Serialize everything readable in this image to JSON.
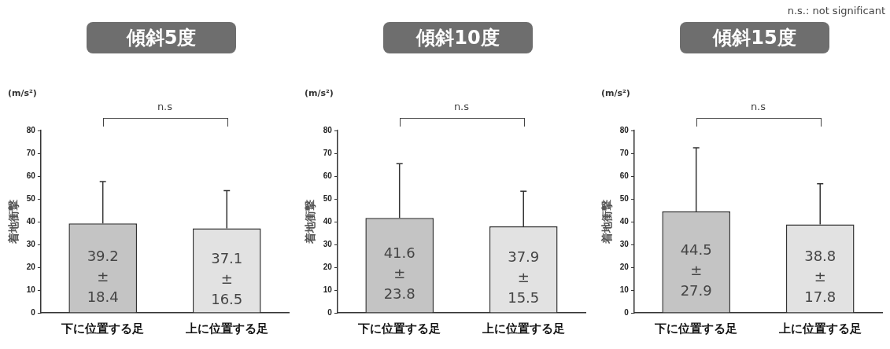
{
  "chart_data": [
    {
      "type": "bar",
      "title": "傾斜5度",
      "ylabel": "着地衝撃",
      "categories": [
        "下に位置する足",
        "上に位置する足"
      ],
      "values": [
        39.2,
        37.1
      ],
      "colors": [
        "#c4c4c4",
        "#e2e2e2"
      ],
      "errors": [
        [
          39.2,
          57.6
        ],
        [
          37.1,
          53.6
        ]
      ],
      "value_labels": [
        "39.2\n±\n18.4",
        "37.1\n±\n16.5"
      ],
      "ylim": [
        0,
        80
      ],
      "yticks": [
        0,
        10,
        20,
        30,
        40,
        50,
        60,
        70,
        80
      ],
      "grid": false,
      "legend": false,
      "annotations": [
        "(m/s²)",
        "n.s"
      ]
    },
    {
      "type": "bar",
      "title": "傾斜10度",
      "ylabel": "着地衝撃",
      "categories": [
        "下に位置する足",
        "上に位置する足"
      ],
      "values": [
        41.6,
        37.9
      ],
      "colors": [
        "#c4c4c4",
        "#e2e2e2"
      ],
      "errors": [
        [
          41.6,
          65.4
        ],
        [
          37.9,
          53.4
        ]
      ],
      "value_labels": [
        "41.6\n±\n23.8",
        "37.9\n±\n15.5"
      ],
      "ylim": [
        0,
        80
      ],
      "yticks": [
        0,
        10,
        20,
        30,
        40,
        50,
        60,
        70,
        80
      ],
      "grid": false,
      "legend": false,
      "annotations": [
        "(m/s²)",
        "n.s"
      ]
    },
    {
      "type": "bar",
      "title": "傾斜15度",
      "ylabel": "着地衝撃",
      "categories": [
        "下に位置する足",
        "上に位置する足"
      ],
      "values": [
        44.5,
        38.8
      ],
      "colors": [
        "#c4c4c4",
        "#e2e2e2"
      ],
      "errors": [
        [
          44.5,
          72.4
        ],
        [
          38.8,
          56.6
        ]
      ],
      "value_labels": [
        "44.5\n±\n27.9",
        "38.8\n±\n17.8"
      ],
      "ylim": [
        0,
        80
      ],
      "yticks": [
        0,
        10,
        20,
        30,
        40,
        50,
        60,
        70,
        80
      ],
      "grid": false,
      "legend": false,
      "annotations": [
        "(m/s²)",
        "n.s",
        "n.s.: not significant"
      ]
    }
  ]
}
